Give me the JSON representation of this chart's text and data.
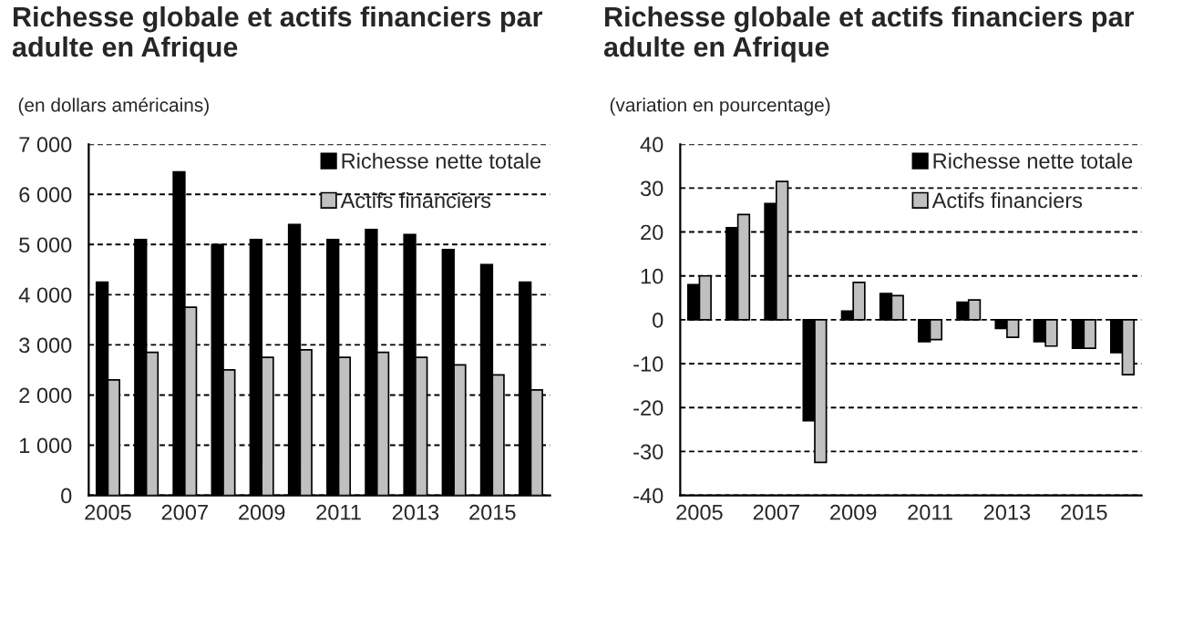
{
  "chart_data": [
    {
      "type": "bar",
      "title": "Richesse globale et actifs financiers par\nadulte en Afrique",
      "subtitle": "(en dollars américains)",
      "categories": [
        "2005",
        null,
        "2007",
        null,
        "2009",
        null,
        "2011",
        null,
        "2013",
        null,
        "2015",
        null
      ],
      "series": [
        {
          "name": "Richesse nette totale",
          "color": "#000000",
          "values": [
            4250,
            5100,
            6450,
            5000,
            5100,
            5400,
            5100,
            5300,
            5200,
            4900,
            4600,
            4250
          ]
        },
        {
          "name": "Actifs financiers",
          "color": "#c0c0c0",
          "values": [
            2300,
            2850,
            3750,
            2500,
            2750,
            2900,
            2750,
            2850,
            2750,
            2600,
            2400,
            2100
          ]
        }
      ],
      "ylim": [
        0,
        7000
      ],
      "yticks": [
        0,
        {
          "value": 1000,
          "label": "1 000"
        },
        {
          "value": 2000,
          "label": "2 000"
        },
        {
          "value": 3000,
          "label": "3 000"
        },
        {
          "value": 4000,
          "label": "4 000"
        },
        {
          "value": 5000,
          "label": "5 000"
        },
        {
          "value": 6000,
          "label": "6 000"
        },
        {
          "value": 7000,
          "label": "7 000"
        }
      ],
      "grid": "y",
      "legend": "top right"
    },
    {
      "type": "bar",
      "title": "Richesse globale et actifs financiers par\nadulte en Afrique",
      "subtitle": "(variation en pourcentage)",
      "categories": [
        "2005",
        null,
        "2007",
        null,
        "2009",
        null,
        "2011",
        null,
        "2013",
        null,
        "2015",
        null
      ],
      "series": [
        {
          "name": "Richesse nette totale",
          "color": "#000000",
          "values": [
            8,
            21,
            26.5,
            -23,
            2,
            6,
            -5,
            4,
            -2,
            -5,
            -6.5,
            -7.5
          ]
        },
        {
          "name": "Actifs financiers",
          "color": "#c0c0c0",
          "values": [
            10,
            24,
            31.5,
            -32.5,
            8.5,
            5.5,
            -4.5,
            4.5,
            -4,
            -6,
            -6.5,
            -12.5
          ]
        }
      ],
      "ylim": [
        -40,
        40
      ],
      "yticks": [
        -40,
        -30,
        -20,
        -10,
        0,
        10,
        20,
        30,
        40
      ],
      "grid": "y",
      "legend": "top right"
    }
  ]
}
